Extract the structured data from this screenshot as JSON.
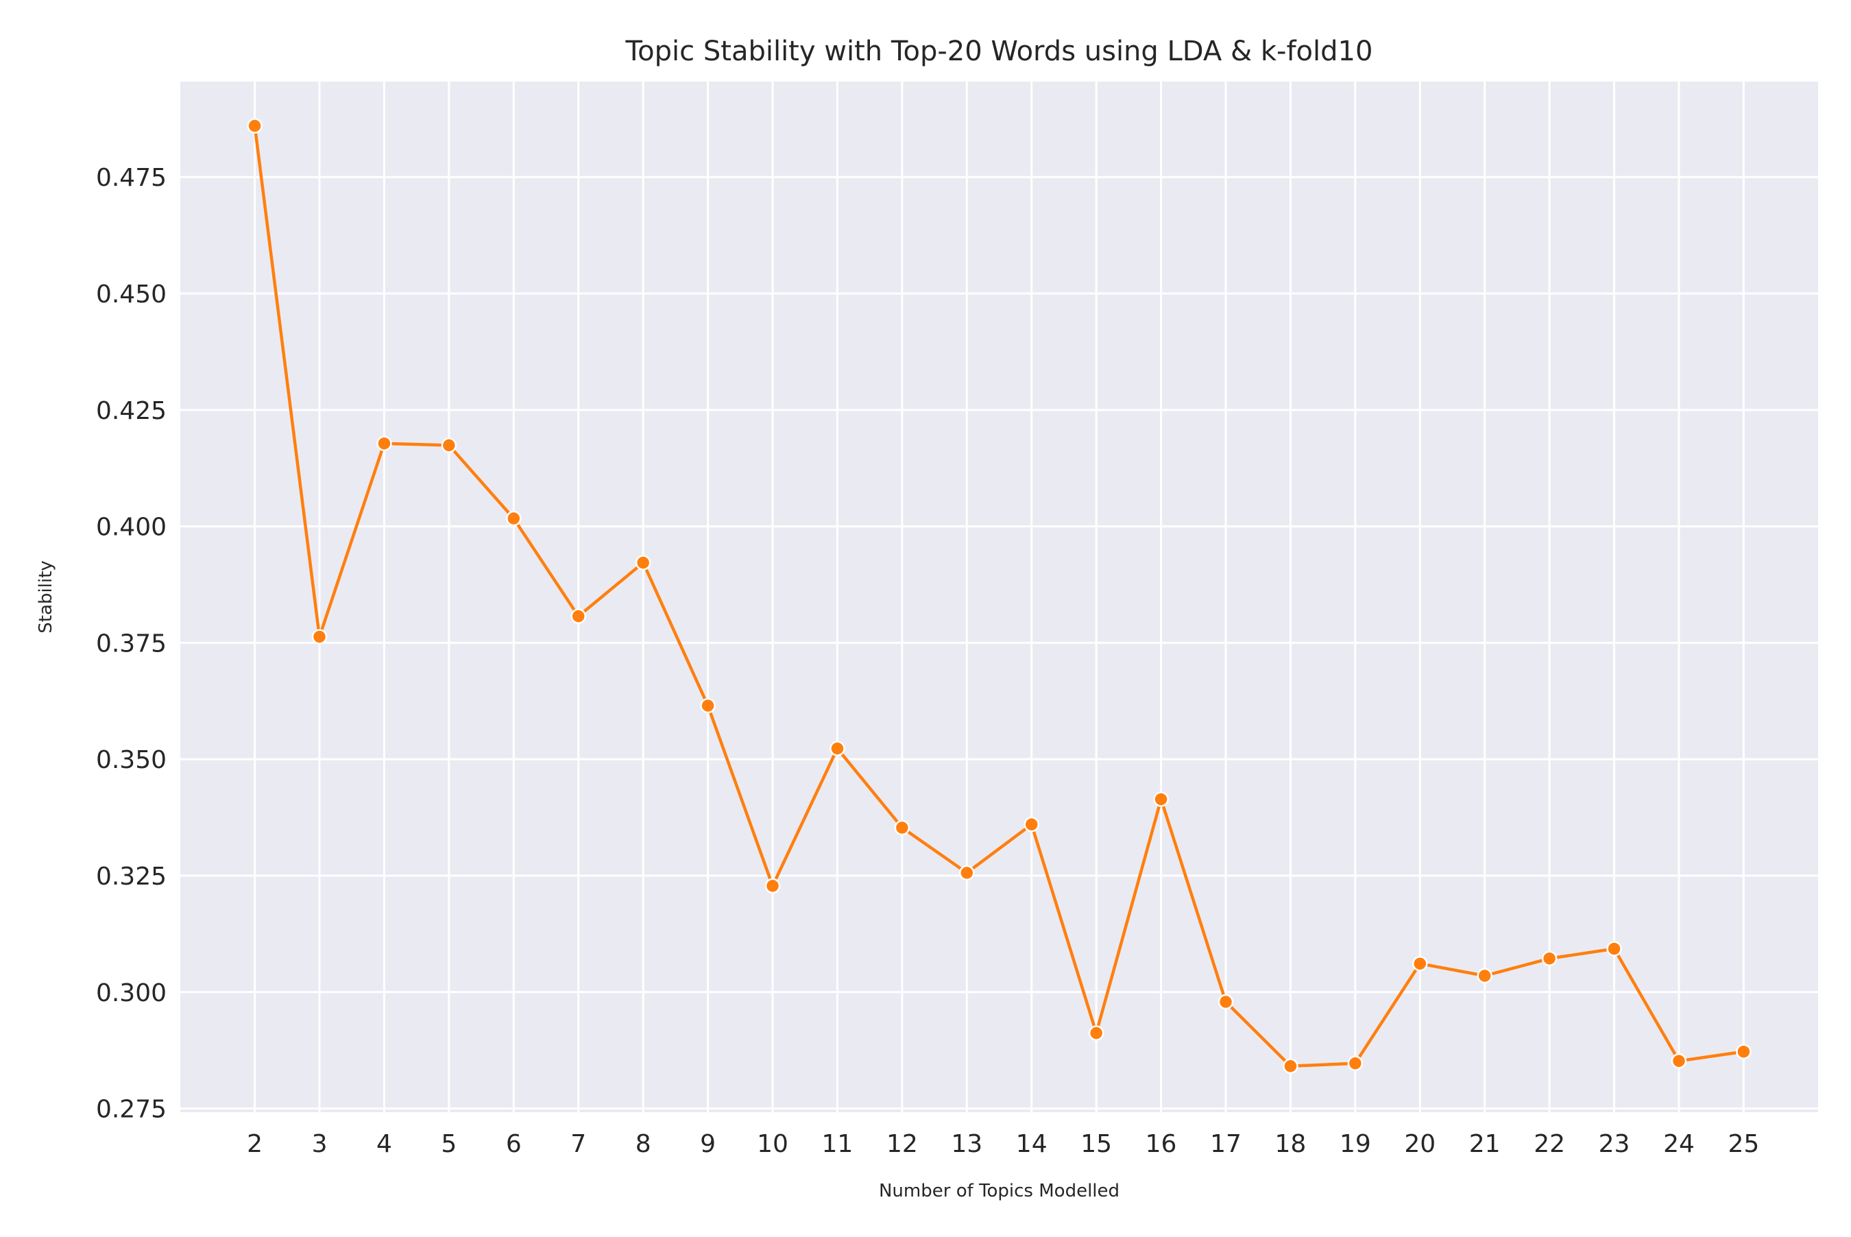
{
  "chart_data": {
    "type": "line",
    "title": "Topic Stability with Top-20 Words using LDA & k-fold10",
    "xlabel": "Number of Topics Modelled",
    "ylabel": "Stability",
    "x": [
      2,
      3,
      4,
      5,
      6,
      7,
      8,
      9,
      10,
      11,
      12,
      13,
      14,
      15,
      16,
      17,
      18,
      19,
      20,
      21,
      22,
      23,
      24,
      25
    ],
    "x_tick_labels": [
      "2",
      "3",
      "4",
      "5",
      "6",
      "7",
      "8",
      "9",
      "10",
      "11",
      "12",
      "13",
      "14",
      "15",
      "16",
      "17",
      "18",
      "19",
      "20",
      "21",
      "22",
      "23",
      "24",
      "25"
    ],
    "series": [
      {
        "values": [
          0.486,
          0.3763,
          0.4178,
          0.4174,
          0.4017,
          0.3807,
          0.3922,
          0.3615,
          0.3228,
          0.3523,
          0.3353,
          0.3256,
          0.336,
          0.2912,
          0.3414,
          0.2979,
          0.2841,
          0.2847,
          0.3061,
          0.3035,
          0.3072,
          0.3093,
          0.2852,
          0.2872
        ],
        "color": "#ff7f0e"
      }
    ],
    "y_ticks": [
      0.275,
      0.3,
      0.325,
      0.35,
      0.375,
      0.4,
      0.425,
      0.45,
      0.475
    ],
    "y_tick_labels": [
      "0.275",
      "0.300",
      "0.325",
      "0.350",
      "0.375",
      "0.400",
      "0.425",
      "0.450",
      "0.475"
    ],
    "xlim": [
      0.85,
      26.15
    ],
    "ylim": [
      0.2742,
      0.4955
    ],
    "grid": true,
    "legend": "none",
    "background_color": "#eaeaf2",
    "grid_color": "#ffffff"
  }
}
